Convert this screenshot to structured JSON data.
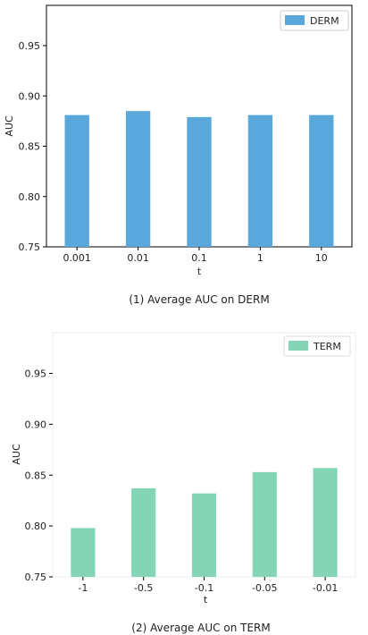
{
  "chart_data": [
    {
      "type": "bar",
      "categories": [
        "0.001",
        "0.01",
        "0.1",
        "1",
        "10"
      ],
      "series": [
        {
          "name": "DERM",
          "values": [
            0.881,
            0.885,
            0.879,
            0.881,
            0.881
          ],
          "color": "#5aa7dc"
        }
      ],
      "xlabel": "t",
      "ylabel": "AUC",
      "ylim": [
        0.75,
        0.99
      ],
      "yticks": [
        "0.75",
        "0.80",
        "0.85",
        "0.90",
        "0.95"
      ],
      "legend": "top-right",
      "caption": "(1) Average AUC on DERM"
    },
    {
      "type": "bar",
      "categories": [
        "-1",
        "-0.5",
        "-0.1",
        "-0.05",
        "-0.01"
      ],
      "series": [
        {
          "name": "TERM",
          "values": [
            0.798,
            0.837,
            0.832,
            0.853,
            0.857
          ],
          "color": "#84d4b6"
        }
      ],
      "xlabel": "t",
      "ylabel": "AUC",
      "ylim": [
        0.75,
        0.99
      ],
      "yticks": [
        "0.75",
        "0.80",
        "0.85",
        "0.90",
        "0.95"
      ],
      "legend": "top-right",
      "caption": "(2) Average AUC on TERM"
    }
  ]
}
